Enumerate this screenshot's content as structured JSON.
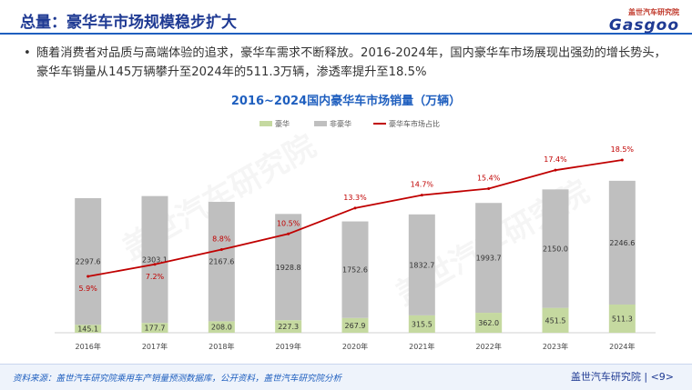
{
  "header": {
    "title": "总量：豪华车市场规模稳步扩大",
    "logo_top": "盖世汽车研究院",
    "logo_word": "Gasgoo"
  },
  "bullet": {
    "symbol": "•",
    "text": "随着消费者对品质与高端体验的追求，豪华车需求不断释放。2016-2024年，国内豪华车市场展现出强劲的增长势头，豪华车销量从145万辆攀升至2024年的511.3万辆，渗透率提升至18.5%"
  },
  "watermark": {
    "text": "盖世汽车研究院"
  },
  "chart_data": {
    "type": "bar",
    "title": "2016~2024国内豪华车市场销量（万辆）",
    "categories": [
      "2016年",
      "2017年",
      "2018年",
      "2019年",
      "2020年",
      "2021年",
      "2022年",
      "2023年",
      "2024年"
    ],
    "series": [
      {
        "name": "豪华",
        "kind": "stacked-bar",
        "color": "#c5d9a0",
        "values": [
          145.1,
          177.7,
          208.0,
          227.3,
          267.9,
          315.5,
          362.0,
          451.5,
          511.3
        ],
        "labels": [
          "145.1",
          "177.7",
          "208.0",
          "227.3",
          "267.9",
          "315.5",
          "362.0",
          "451.5",
          "511.3"
        ]
      },
      {
        "name": "非豪华",
        "kind": "stacked-bar",
        "color": "#bfbfbf",
        "values": [
          2297.6,
          2303.1,
          2167.6,
          1928.8,
          1752.6,
          1832.7,
          1993.7,
          2150.0,
          2246.6
        ],
        "labels": [
          "2297.6",
          "2303.1",
          "2167.6",
          "1928.8",
          "1752.6",
          "1832.7",
          "1993.7",
          "2150.0",
          "2246.6"
        ]
      },
      {
        "name": "豪华车市场占比",
        "kind": "line",
        "color": "#c00000",
        "values": [
          5.9,
          7.2,
          8.8,
          10.5,
          13.3,
          14.7,
          15.4,
          17.4,
          18.5
        ],
        "labels": [
          "5.9%",
          "7.2%",
          "8.8%",
          "10.5%",
          "13.3%",
          "14.7%",
          "15.4%",
          "17.4%",
          "18.5%"
        ]
      }
    ],
    "legend_position": "top-left",
    "grid": false
  },
  "footer": {
    "source": "资料来源：盖世汽车研究院乘用车产销量预测数据库，公开资料，盖世汽车研究院分析",
    "org": "盖世汽车研究院",
    "page": "<9>"
  }
}
